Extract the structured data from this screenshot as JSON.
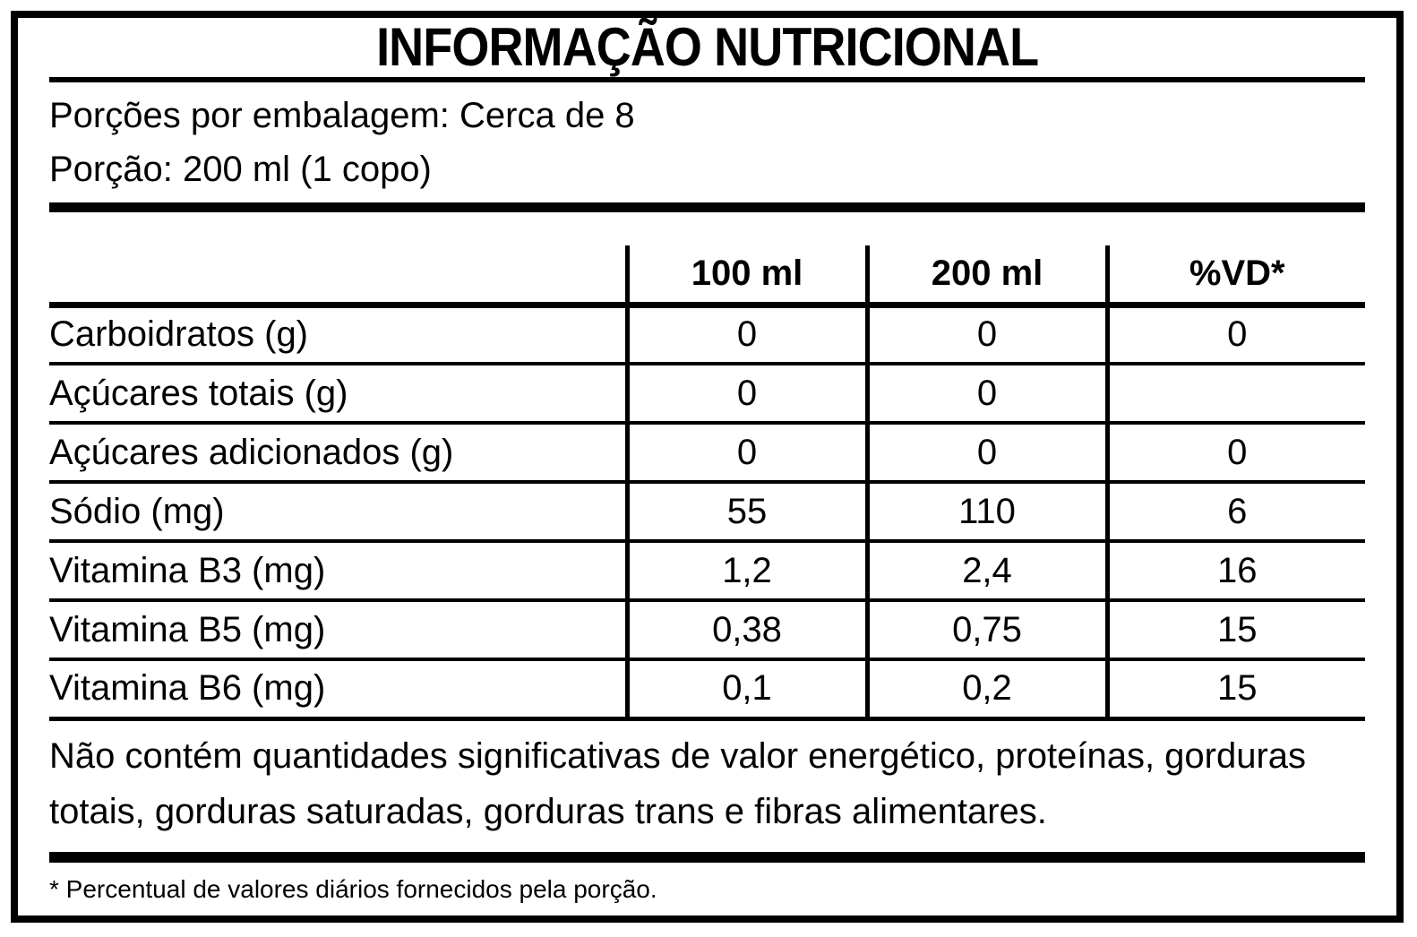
{
  "label": {
    "title": "INFORMAÇÃO NUTRICIONAL",
    "servings_per_package": "Porções por embalagem: Cerca de 8",
    "portion": "Porção: 200 ml (1 copo)"
  },
  "table": {
    "columns": [
      "",
      "100 ml",
      "200 ml",
      "%VD*"
    ],
    "rows": [
      {
        "label": "Carboidratos (g)",
        "indent": 0,
        "values": [
          "0",
          "0",
          "0"
        ]
      },
      {
        "label": "Açúcares totais (g)",
        "indent": 1,
        "values": [
          "0",
          "0",
          ""
        ]
      },
      {
        "label": "Açúcares adicionados (g)",
        "indent": 2,
        "values": [
          "0",
          "0",
          "0"
        ]
      },
      {
        "label": "Sódio (mg)",
        "indent": 0,
        "values": [
          "55",
          "110",
          "6"
        ]
      },
      {
        "label": "Vitamina B3 (mg)",
        "indent": 0,
        "values": [
          "1,2",
          "2,4",
          "16"
        ]
      },
      {
        "label": "Vitamina B5 (mg)",
        "indent": 0,
        "values": [
          "0,38",
          "0,75",
          "15"
        ]
      },
      {
        "label": "Vitamina B6 (mg)",
        "indent": 0,
        "values": [
          "0,1",
          "0,2",
          "15"
        ]
      }
    ]
  },
  "notes": {
    "no_significant_amounts": "Não contém quantidades significativas de valor energético, proteínas, gorduras totais, gorduras saturadas, gorduras trans e fibras alimentares.",
    "daily_value_footnote": "* Percentual de valores diários fornecidos pela porção."
  },
  "colors": {
    "ink": "#000000",
    "background": "#ffffff"
  }
}
